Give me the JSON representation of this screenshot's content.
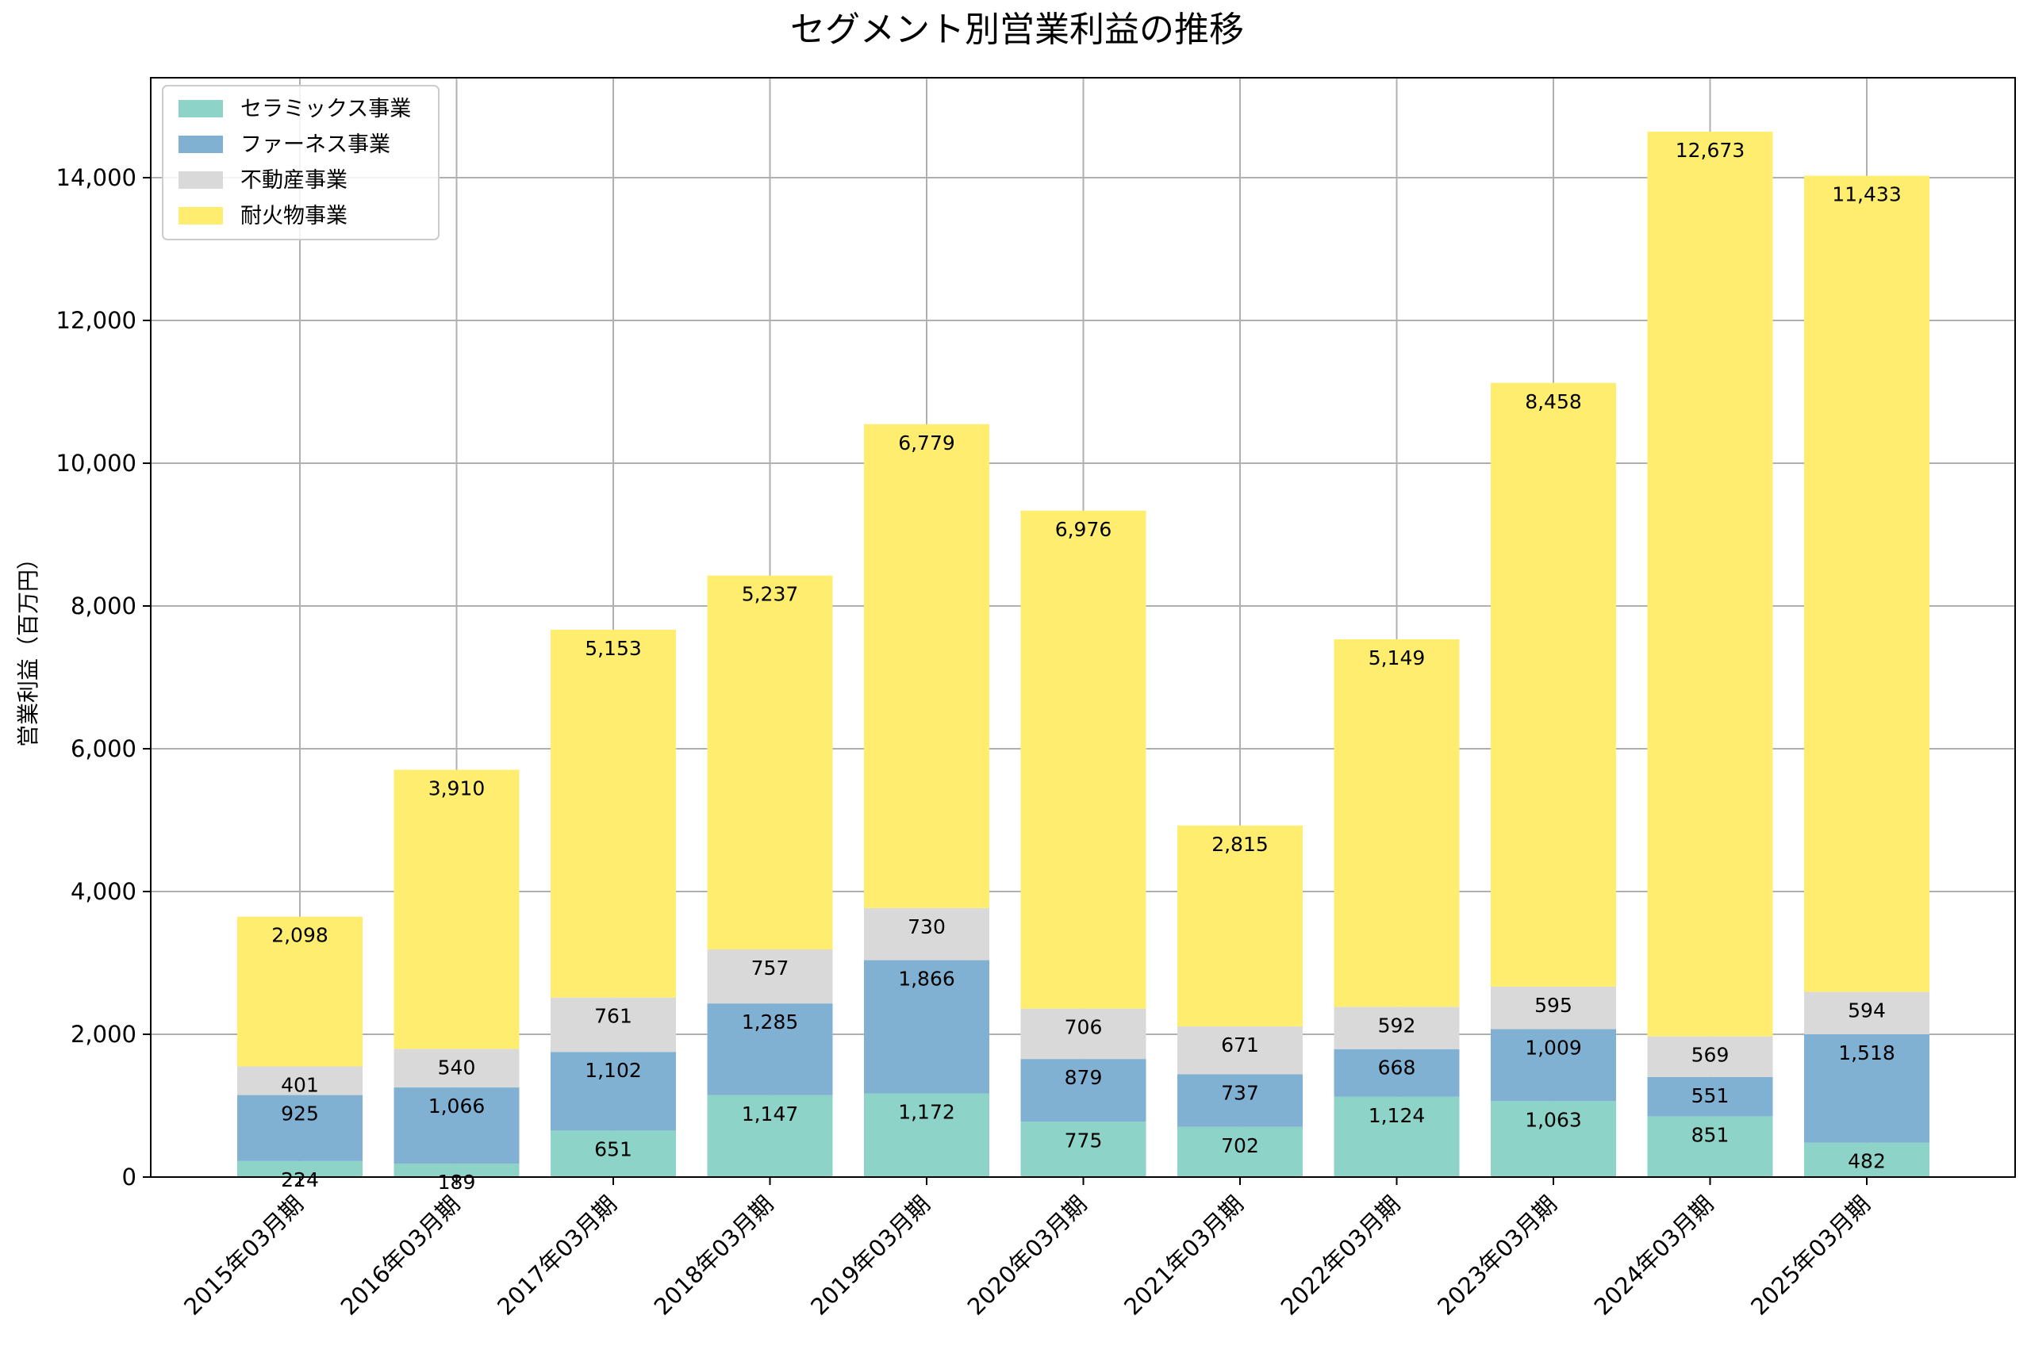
{
  "chart_data": {
    "type": "bar",
    "stacked": true,
    "title": "セグメント別営業利益の推移",
    "xlabel": "",
    "ylabel": "営業利益（百万円）",
    "ylim": [
      0,
      15400
    ],
    "yticks": [
      0,
      2000,
      4000,
      6000,
      8000,
      10000,
      12000,
      14000
    ],
    "ytick_labels": [
      "0",
      "2,000",
      "4,000",
      "6,000",
      "8,000",
      "10,000",
      "12,000",
      "14,000"
    ],
    "grid": true,
    "legend_position": "top-left",
    "categories": [
      "2015年03月期",
      "2016年03月期",
      "2017年03月期",
      "2018年03月期",
      "2019年03月期",
      "2020年03月期",
      "2021年03月期",
      "2022年03月期",
      "2023年03月期",
      "2024年03月期",
      "2025年03月期"
    ],
    "series": [
      {
        "name": "セラミックス事業",
        "color": "#8dd3c7",
        "values": [
          224,
          189,
          651,
          1147,
          1172,
          775,
          702,
          1124,
          1063,
          851,
          482
        ],
        "labels": [
          "224",
          "189",
          "651",
          "1,147",
          "1,172",
          "775",
          "702",
          "1,124",
          "1,063",
          "851",
          "482"
        ]
      },
      {
        "name": "ファーネス事業",
        "color": "#80b1d3",
        "values": [
          925,
          1066,
          1102,
          1285,
          1866,
          879,
          737,
          668,
          1009,
          551,
          1518
        ],
        "labels": [
          "925",
          "1,066",
          "1,102",
          "1,285",
          "1,866",
          "879",
          "737",
          "668",
          "1,009",
          "551",
          "1,518"
        ]
      },
      {
        "name": "不動産事業",
        "color": "#d9d9d9",
        "values": [
          401,
          540,
          761,
          757,
          730,
          706,
          671,
          592,
          595,
          569,
          594
        ],
        "labels": [
          "401",
          "540",
          "761",
          "757",
          "730",
          "706",
          "671",
          "592",
          "595",
          "569",
          "594"
        ]
      },
      {
        "name": "耐火物事業",
        "color": "#ffed6f",
        "values": [
          2098,
          3910,
          5153,
          5237,
          6779,
          6976,
          2815,
          5149,
          8458,
          12673,
          11433
        ],
        "labels": [
          "2,098",
          "3,910",
          "5,153",
          "5,237",
          "6,779",
          "6,976",
          "2,815",
          "5,149",
          "8,458",
          "12,673",
          "11,433"
        ]
      }
    ]
  }
}
